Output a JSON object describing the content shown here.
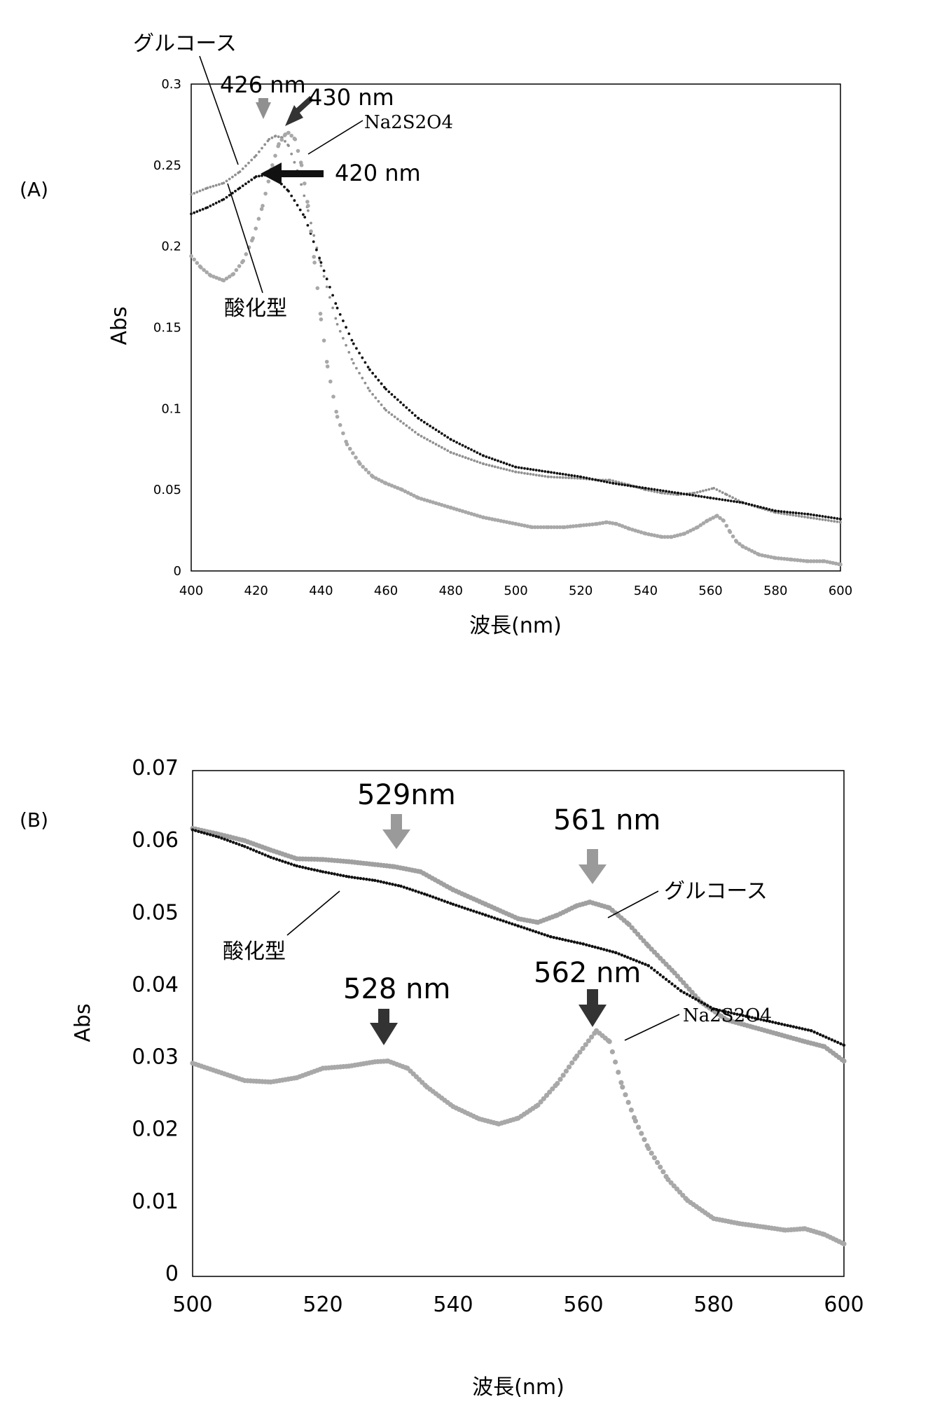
{
  "chart_data": [
    {
      "panel": "(A)",
      "type": "scatter",
      "xlabel": "波長(nm)",
      "ylabel": "Abs",
      "xlim": [
        400,
        600
      ],
      "ylim": [
        0,
        0.3
      ],
      "xticks": [
        400,
        420,
        440,
        460,
        480,
        500,
        520,
        540,
        560,
        580,
        600
      ],
      "yticks": [
        0,
        0.05,
        0.1,
        0.15,
        0.2,
        0.25,
        0.3
      ],
      "grid": false,
      "series": [
        {
          "name": "グルコース",
          "color": "#909090",
          "marker": "small-dot",
          "points": [
            [
              400,
              0.232
            ],
            [
              405,
              0.236
            ],
            [
              410,
              0.239
            ],
            [
              415,
              0.246
            ],
            [
              420,
              0.256
            ],
            [
              424,
              0.266
            ],
            [
              426,
              0.268
            ],
            [
              428,
              0.267
            ],
            [
              430,
              0.262
            ],
            [
              433,
              0.245
            ],
            [
              436,
              0.222
            ],
            [
              440,
              0.188
            ],
            [
              445,
              0.152
            ],
            [
              450,
              0.128
            ],
            [
              455,
              0.111
            ],
            [
              460,
              0.099
            ],
            [
              470,
              0.084
            ],
            [
              480,
              0.073
            ],
            [
              490,
              0.066
            ],
            [
              500,
              0.061
            ],
            [
              510,
              0.058
            ],
            [
              520,
              0.057
            ],
            [
              525,
              0.056
            ],
            [
              529,
              0.056
            ],
            [
              535,
              0.053
            ],
            [
              540,
              0.05
            ],
            [
              545,
              0.048
            ],
            [
              550,
              0.047
            ],
            [
              555,
              0.048
            ],
            [
              561,
              0.051
            ],
            [
              565,
              0.047
            ],
            [
              570,
              0.042
            ],
            [
              575,
              0.039
            ],
            [
              580,
              0.036
            ],
            [
              590,
              0.033
            ],
            [
              600,
              0.03
            ]
          ]
        },
        {
          "name": "酸化型",
          "color": "#111111",
          "marker": "small-dot",
          "points": [
            [
              400,
              0.22
            ],
            [
              405,
              0.224
            ],
            [
              410,
              0.229
            ],
            [
              415,
              0.236
            ],
            [
              420,
              0.243
            ],
            [
              423,
              0.244
            ],
            [
              426,
              0.242
            ],
            [
              430,
              0.234
            ],
            [
              435,
              0.218
            ],
            [
              440,
              0.19
            ],
            [
              445,
              0.162
            ],
            [
              450,
              0.14
            ],
            [
              455,
              0.124
            ],
            [
              460,
              0.112
            ],
            [
              470,
              0.094
            ],
            [
              480,
              0.081
            ],
            [
              490,
              0.071
            ],
            [
              500,
              0.064
            ],
            [
              510,
              0.061
            ],
            [
              520,
              0.058
            ],
            [
              530,
              0.054
            ],
            [
              540,
              0.051
            ],
            [
              550,
              0.048
            ],
            [
              560,
              0.045
            ],
            [
              570,
              0.042
            ],
            [
              580,
              0.037
            ],
            [
              590,
              0.035
            ],
            [
              600,
              0.032
            ]
          ]
        },
        {
          "name": "Na2S2O4",
          "color": "#a8a8a8",
          "marker": "large-dot",
          "points": [
            [
              400,
              0.194
            ],
            [
              403,
              0.187
            ],
            [
              406,
              0.182
            ],
            [
              410,
              0.179
            ],
            [
              413,
              0.183
            ],
            [
              416,
              0.191
            ],
            [
              419,
              0.205
            ],
            [
              422,
              0.225
            ],
            [
              425,
              0.25
            ],
            [
              427,
              0.263
            ],
            [
              429,
              0.269
            ],
            [
              430,
              0.27
            ],
            [
              432,
              0.266
            ],
            [
              434,
              0.25
            ],
            [
              436,
              0.225
            ],
            [
              438,
              0.19
            ],
            [
              440,
              0.155
            ],
            [
              442,
              0.126
            ],
            [
              445,
              0.095
            ],
            [
              448,
              0.078
            ],
            [
              452,
              0.066
            ],
            [
              456,
              0.058
            ],
            [
              460,
              0.054
            ],
            [
              465,
              0.05
            ],
            [
              470,
              0.045
            ],
            [
              480,
              0.039
            ],
            [
              490,
              0.033
            ],
            [
              500,
              0.029
            ],
            [
              505,
              0.027
            ],
            [
              510,
              0.027
            ],
            [
              515,
              0.027
            ],
            [
              520,
              0.028
            ],
            [
              525,
              0.029
            ],
            [
              528,
              0.03
            ],
            [
              531,
              0.029
            ],
            [
              535,
              0.026
            ],
            [
              540,
              0.023
            ],
            [
              545,
              0.021
            ],
            [
              548,
              0.021
            ],
            [
              552,
              0.023
            ],
            [
              556,
              0.027
            ],
            [
              559,
              0.031
            ],
            [
              562,
              0.034
            ],
            [
              564,
              0.031
            ],
            [
              566,
              0.024
            ],
            [
              568,
              0.018
            ],
            [
              570,
              0.015
            ],
            [
              575,
              0.01
            ],
            [
              580,
              0.008
            ],
            [
              585,
              0.007
            ],
            [
              590,
              0.006
            ],
            [
              595,
              0.006
            ],
            [
              600,
              0.004
            ]
          ]
        }
      ],
      "annotations": [
        {
          "text": "426 nm",
          "x": 426,
          "y": 0.268,
          "arrow_color": "#909090"
        },
        {
          "text": "430 nm",
          "x": 430,
          "y": 0.27,
          "arrow_color": "#333333"
        },
        {
          "text": "420 nm",
          "x": 420,
          "y": 0.244,
          "arrow_color": "#111111"
        }
      ],
      "series_labels": [
        "グルコース",
        "Na2S2O4",
        "酸化型"
      ]
    },
    {
      "panel": "(B)",
      "type": "scatter",
      "xlabel": "波長(nm)",
      "ylabel": "Abs",
      "xlim": [
        500,
        600
      ],
      "ylim": [
        0,
        0.07
      ],
      "xticks": [
        500,
        520,
        540,
        560,
        580,
        600
      ],
      "yticks": [
        0,
        0.01,
        0.02,
        0.03,
        0.04,
        0.05,
        0.06,
        0.07
      ],
      "grid": false,
      "series": [
        {
          "name": "グルコース",
          "color": "#a0a0a0",
          "marker": "large-dot",
          "points": [
            [
              500,
              0.062
            ],
            [
              504,
              0.0612
            ],
            [
              508,
              0.0603
            ],
            [
              512,
              0.059
            ],
            [
              516,
              0.0578
            ],
            [
              520,
              0.0577
            ],
            [
              524,
              0.0574
            ],
            [
              528,
              0.057
            ],
            [
              531,
              0.0567
            ],
            [
              535,
              0.056
            ],
            [
              540,
              0.0535
            ],
            [
              545,
              0.0515
            ],
            [
              550,
              0.0495
            ],
            [
              553,
              0.049
            ],
            [
              556,
              0.05
            ],
            [
              559,
              0.0513
            ],
            [
              561,
              0.0518
            ],
            [
              564,
              0.051
            ],
            [
              567,
              0.0487
            ],
            [
              570,
              0.0457
            ],
            [
              574,
              0.042
            ],
            [
              578,
              0.038
            ],
            [
              582,
              0.0355
            ],
            [
              586,
              0.0345
            ],
            [
              590,
              0.0335
            ],
            [
              594,
              0.0325
            ],
            [
              597,
              0.0318
            ],
            [
              600,
              0.0298
            ]
          ]
        },
        {
          "name": "酸化型",
          "color": "#111111",
          "marker": "small-dot",
          "points": [
            [
              500,
              0.0618
            ],
            [
              504,
              0.0608
            ],
            [
              508,
              0.0595
            ],
            [
              512,
              0.058
            ],
            [
              516,
              0.0568
            ],
            [
              520,
              0.056
            ],
            [
              524,
              0.0553
            ],
            [
              528,
              0.0548
            ],
            [
              532,
              0.054
            ],
            [
              536,
              0.0528
            ],
            [
              540,
              0.0515
            ],
            [
              545,
              0.05
            ],
            [
              550,
              0.0485
            ],
            [
              555,
              0.047
            ],
            [
              560,
              0.046
            ],
            [
              565,
              0.0448
            ],
            [
              570,
              0.043
            ],
            [
              575,
              0.0395
            ],
            [
              580,
              0.037
            ],
            [
              585,
              0.036
            ],
            [
              590,
              0.035
            ],
            [
              595,
              0.034
            ],
            [
              600,
              0.032
            ]
          ]
        },
        {
          "name": "Na2S2O4",
          "color": "#a8a8a8",
          "marker": "large-dot",
          "points": [
            [
              500,
              0.0295
            ],
            [
              504,
              0.0283
            ],
            [
              508,
              0.0271
            ],
            [
              512,
              0.0269
            ],
            [
              516,
              0.0275
            ],
            [
              520,
              0.0288
            ],
            [
              524,
              0.0291
            ],
            [
              528,
              0.0297
            ],
            [
              530,
              0.0298
            ],
            [
              533,
              0.0288
            ],
            [
              536,
              0.0262
            ],
            [
              540,
              0.0235
            ],
            [
              544,
              0.0218
            ],
            [
              547,
              0.0211
            ],
            [
              550,
              0.0219
            ],
            [
              553,
              0.0237
            ],
            [
              556,
              0.0267
            ],
            [
              559,
              0.0305
            ],
            [
              562,
              0.034
            ],
            [
              564,
              0.0325
            ],
            [
              566,
              0.0262
            ],
            [
              568,
              0.0215
            ],
            [
              570,
              0.0177
            ],
            [
              573,
              0.0134
            ],
            [
              576,
              0.0105
            ],
            [
              580,
              0.008
            ],
            [
              584,
              0.0073
            ],
            [
              588,
              0.0068
            ],
            [
              591,
              0.0064
            ],
            [
              594,
              0.0066
            ],
            [
              597,
              0.0058
            ],
            [
              600,
              0.0045
            ]
          ]
        }
      ],
      "annotations": [
        {
          "text": "529nm",
          "x": 531,
          "y": 0.0567,
          "arrow_color": "#9a9a9a"
        },
        {
          "text": "561 nm",
          "x": 562,
          "y": 0.0518,
          "arrow_color": "#9a9a9a"
        },
        {
          "text": "528 nm",
          "x": 530,
          "y": 0.0298,
          "arrow_color": "#333333"
        },
        {
          "text": "562 nm",
          "x": 562,
          "y": 0.034,
          "arrow_color": "#333333"
        }
      ],
      "series_labels": [
        "グルコース",
        "酸化型",
        "Na2S2O4"
      ]
    }
  ]
}
